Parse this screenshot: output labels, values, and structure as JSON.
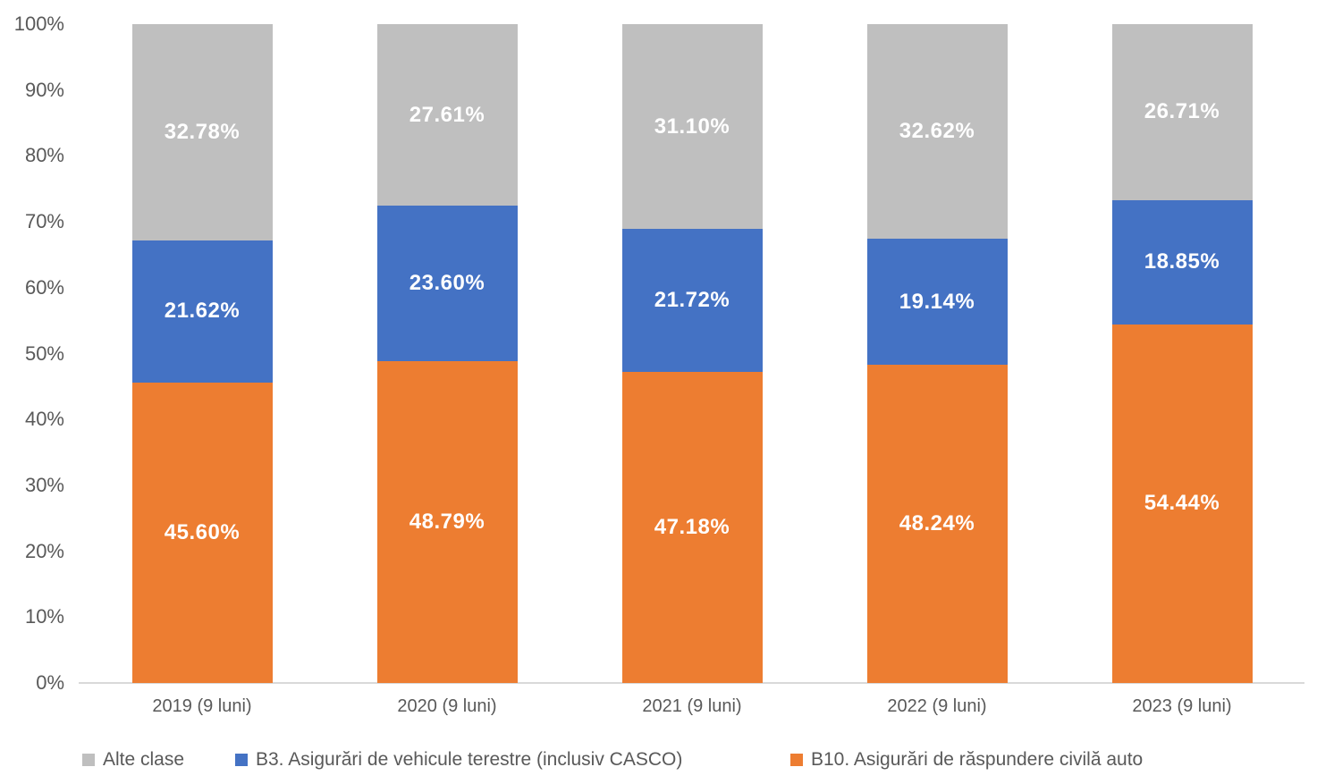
{
  "chart_data": {
    "type": "bar",
    "stacked": true,
    "percent_stacked": true,
    "title": "",
    "xlabel": "",
    "ylabel": "",
    "ylim": [
      0,
      100
    ],
    "grid": false,
    "legend_position": "bottom",
    "categories": [
      "2019 (9 luni)",
      "2020 (9 luni)",
      "2021 (9 luni)",
      "2022 (9 luni)",
      "2023 (9 luni)"
    ],
    "y_ticks": [
      "0%",
      "10%",
      "20%",
      "30%",
      "40%",
      "50%",
      "60%",
      "70%",
      "80%",
      "90%",
      "100%"
    ],
    "series": [
      {
        "name": "B10. Asigurări de răspundere civilă auto",
        "color": "#ED7D31",
        "values": [
          45.6,
          48.79,
          47.18,
          48.24,
          54.44
        ],
        "labels": [
          "45.60%",
          "48.79%",
          "47.18%",
          "48.24%",
          "54.44%"
        ]
      },
      {
        "name": "B3. Asigurări de vehicule terestre (inclusiv CASCO)",
        "color": "#4472C4",
        "values": [
          21.62,
          23.6,
          21.72,
          19.14,
          18.85
        ],
        "labels": [
          "21.62%",
          "23.60%",
          "21.72%",
          "19.14%",
          "18.85%"
        ]
      },
      {
        "name": "Alte clase",
        "color": "#BFBFBF",
        "values": [
          32.78,
          27.61,
          31.1,
          32.62,
          26.71
        ],
        "labels": [
          "32.78%",
          "27.61%",
          "31.10%",
          "32.62%",
          "26.71%"
        ]
      }
    ],
    "legend": [
      {
        "label": "Alte clase",
        "color": "#BFBFBF"
      },
      {
        "label": "B3. Asigurări de vehicule terestre (inclusiv CASCO)",
        "color": "#4472C4"
      },
      {
        "label": "B10. Asigurări de răspundere civilă auto",
        "color": "#ED7D31"
      }
    ],
    "colors": {
      "axis_text": "#595959",
      "axis_line": "#D9D9D9",
      "data_label_text": "#FFFFFF",
      "background": "#FFFFFF"
    }
  }
}
